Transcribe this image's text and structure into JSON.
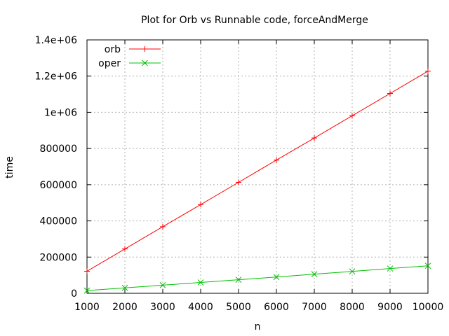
{
  "chart_data": {
    "type": "line",
    "title": "Plot for Orb vs Runnable code, forceAndMerge",
    "xlabel": "n",
    "ylabel": "time",
    "x": [
      1000,
      2000,
      3000,
      4000,
      5000,
      6000,
      7000,
      8000,
      9000,
      10000
    ],
    "xlim": [
      1000,
      10000
    ],
    "ylim": [
      0,
      1400000
    ],
    "x_ticks": [
      1000,
      2000,
      3000,
      4000,
      5000,
      6000,
      7000,
      8000,
      9000,
      10000
    ],
    "x_tick_labels": [
      "1000",
      "2000",
      "3000",
      "4000",
      "5000",
      "6000",
      "7000",
      "8000",
      "9000",
      "10000"
    ],
    "y_ticks": [
      0,
      200000,
      400000,
      600000,
      800000,
      1000000,
      1200000,
      1400000
    ],
    "y_tick_labels": [
      "0",
      "200000",
      "400000",
      "600000",
      "800000",
      "1e+06",
      "1.2e+06",
      "1.4e+06"
    ],
    "grid": true,
    "legend_position": "top-left",
    "series": [
      {
        "name": "orb",
        "color": "#ff0000",
        "marker": "plus",
        "values": [
          122000,
          245000,
          368000,
          490000,
          613000,
          736000,
          858000,
          981000,
          1104000,
          1227000
        ]
      },
      {
        "name": "oper",
        "color": "#00c000",
        "marker": "cross",
        "values": [
          15000,
          30000,
          45000,
          60000,
          75000,
          90000,
          106000,
          121000,
          137000,
          152000
        ]
      }
    ]
  }
}
